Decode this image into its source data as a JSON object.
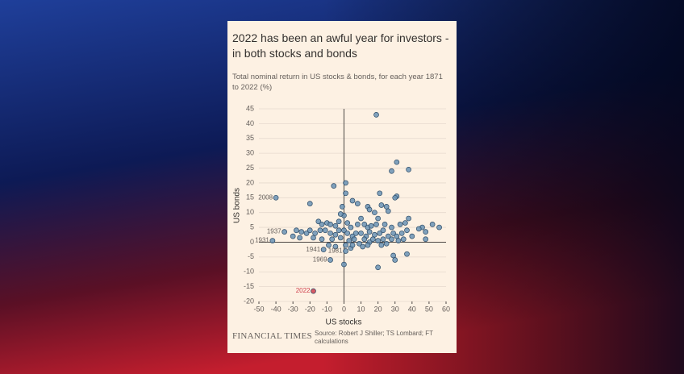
{
  "chart_data": {
    "type": "scatter",
    "title": "2022 has been an awful year for investors - in both stocks and bonds",
    "subtitle": "Total nominal return in US stocks & bonds, for each year 1871 to 2022 (%)",
    "x_label": "US stocks",
    "y_label": "US bonds",
    "brand": "FINANCIAL TIMES",
    "source": "Source: Robert J Shiller; TS Lombard; FT calculations",
    "color": "#6a93b5",
    "x": [
      19,
      31,
      38,
      28,
      1,
      -6,
      1,
      21,
      31,
      30,
      -20,
      5,
      8,
      22,
      14,
      15,
      25,
      26,
      18,
      -1,
      0,
      -2,
      10,
      20,
      38,
      -15,
      -13,
      -10,
      -8,
      -5,
      -3,
      2,
      4,
      8,
      12,
      14,
      16,
      19,
      24,
      28,
      33,
      36,
      46,
      52,
      56,
      44,
      48,
      -28,
      -25,
      -22,
      -20,
      -17,
      -14,
      -11,
      -8,
      -5,
      -3,
      0,
      2,
      5,
      7,
      10,
      13,
      15,
      18,
      21,
      23,
      26,
      29,
      31,
      34,
      37,
      40,
      -30,
      -26,
      -18,
      -13,
      -7,
      -2,
      3,
      6,
      9,
      12,
      15,
      17,
      20,
      23,
      25,
      28,
      32,
      35,
      48,
      -9,
      -5,
      1,
      4,
      11,
      14,
      22,
      29,
      30,
      37,
      20,
      0,
      5
    ],
    "values": [
      43,
      27,
      24.5,
      24,
      20,
      19,
      16.5,
      16.5,
      15.5,
      15,
      13,
      14,
      13,
      12.5,
      12,
      11,
      12,
      10.5,
      10,
      12,
      9,
      9.5,
      8,
      8,
      8,
      7,
      6,
      6.5,
      6,
      5.5,
      7,
      6.5,
      5,
      6,
      6,
      5,
      5.5,
      6,
      6,
      5,
      6,
      6.5,
      5,
      6,
      5,
      4.5,
      3.5,
      4,
      3.5,
      3,
      4,
      3,
      4,
      4,
      3,
      2.5,
      4,
      4,
      3,
      2,
      3,
      3,
      2,
      3.5,
      2.5,
      3,
      4,
      2,
      3,
      2,
      3,
      4,
      2,
      2,
      1.5,
      1.5,
      1,
      1,
      1.5,
      0.5,
      1,
      -0.5,
      1,
      0,
      1,
      0.5,
      1,
      -0.5,
      1,
      0.5,
      1,
      1,
      -1,
      -1.5,
      -1,
      -2,
      -1.5,
      -1,
      -1,
      -4.5,
      -6,
      -4,
      -8.5,
      -7.5,
      -1
    ],
    "annotations": [
      {
        "text": "2008",
        "x": -40,
        "y": 15,
        "color": "#6a93b5"
      },
      {
        "text": "1931",
        "x": -42,
        "y": 0.5,
        "color": "#6a93b5"
      },
      {
        "text": "1937",
        "x": -35,
        "y": 3.5,
        "color": "#6a93b5"
      },
      {
        "text": "1941",
        "x": -12,
        "y": -2.5,
        "color": "#6a93b5"
      },
      {
        "text": "1969",
        "x": -8,
        "y": -6,
        "color": "#6a93b5"
      },
      {
        "text": "1981",
        "x": 1,
        "y": -3,
        "color": "#6a93b5"
      },
      {
        "text": "2022",
        "x": -18,
        "y": -16.5,
        "color": "#d0404d"
      }
    ],
    "xlim": [
      -50,
      60
    ],
    "ylim": [
      -20,
      45
    ],
    "xticks": [
      -50,
      -40,
      -30,
      -20,
      -10,
      0,
      10,
      20,
      30,
      40,
      50,
      60
    ],
    "yticks": [
      -20,
      -15,
      -10,
      -5,
      0,
      5,
      10,
      15,
      20,
      25,
      30,
      35,
      40,
      45
    ],
    "grid": true
  }
}
